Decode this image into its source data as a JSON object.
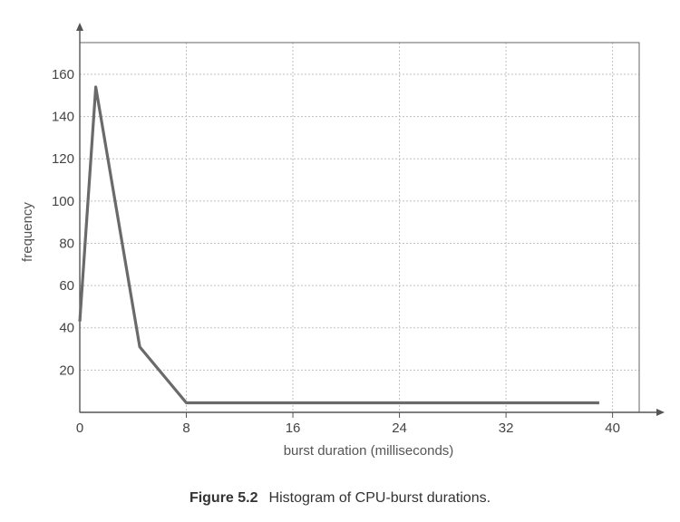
{
  "caption": {
    "number": "Figure 5.2",
    "text": "Histogram of CPU-burst durations."
  },
  "chart_data": {
    "type": "line",
    "title": "",
    "xlabel": "burst duration (milliseconds)",
    "ylabel": "frequency",
    "xlim": [
      0,
      42
    ],
    "ylim": [
      0,
      175
    ],
    "xticks": [
      0,
      8,
      16,
      24,
      32,
      40
    ],
    "yticks": [
      20,
      40,
      60,
      80,
      100,
      120,
      140,
      160
    ],
    "grid": true,
    "series": [
      {
        "x": [
          0,
          1.2,
          4.5,
          8,
          39
        ],
        "y": [
          43,
          154,
          31,
          4.5,
          4.5
        ]
      }
    ],
    "colors": {
      "line": "#6a6a6a",
      "axis": "#555555",
      "grid": "#bfbfbf",
      "frame": "#666666"
    }
  }
}
